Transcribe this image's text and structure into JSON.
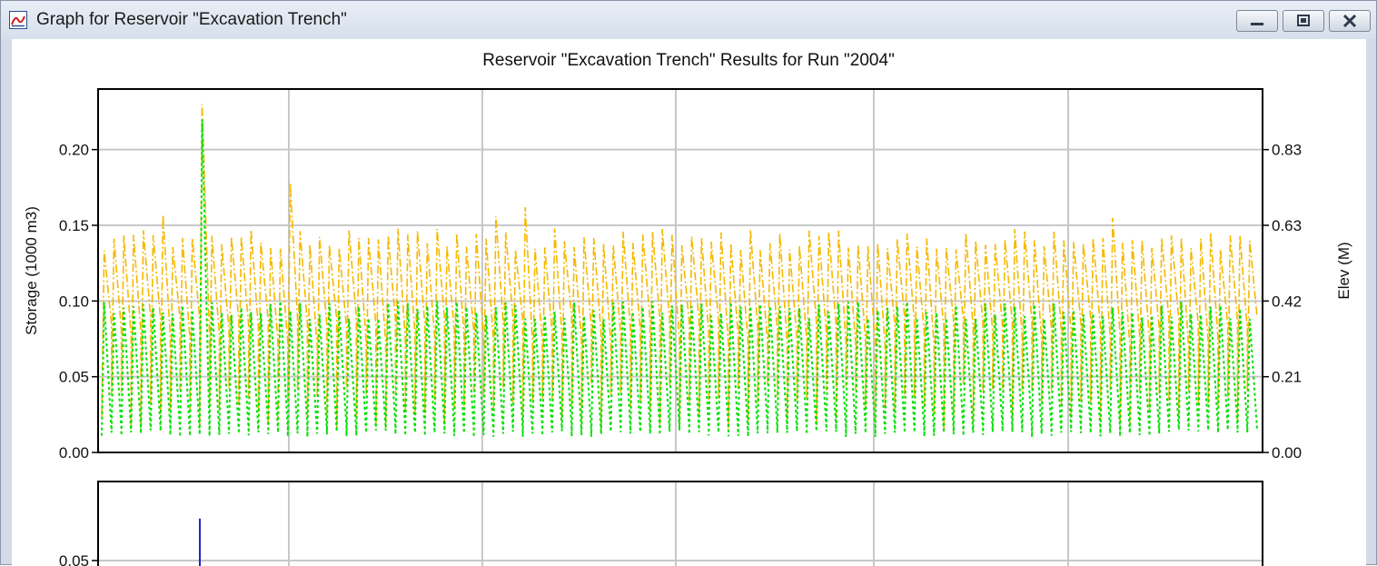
{
  "window": {
    "title": "Graph for Reservoir \"Excavation Trench\"",
    "app_icon": "graph-icon",
    "controls": [
      "minimize-icon",
      "restore-icon",
      "close-icon"
    ]
  },
  "chart_data": [
    {
      "type": "line",
      "title": "Reservoir \"Excavation Trench\" Results for Run \"2004\"",
      "ylabel": "Storage (1000 m3)",
      "y2label": "Elev (M)",
      "ylim": [
        0,
        0.24
      ],
      "yticks": [
        "0.00",
        "0.05",
        "0.10",
        "0.15",
        "0.20"
      ],
      "y2ticks": [
        "0.00",
        "0.21",
        "0.42",
        "0.63",
        "0.83"
      ],
      "grid": true,
      "series": [
        {
          "color": "#f5b800",
          "style": "dash-dot",
          "typical_peak": 0.145,
          "peaks": [
            0.157,
            0.23,
            0.178,
            0.156,
            0.162,
            0.155
          ],
          "low": 0.0
        },
        {
          "color": "#00e000",
          "style": "dotted",
          "typical_peak": 0.1,
          "peaks": [
            0.22
          ],
          "low": 0.01
        }
      ]
    },
    {
      "type": "line",
      "title": "",
      "ylabel": "",
      "yticks": [
        "0.05"
      ],
      "grid": true,
      "series": [
        {
          "color": "#2222cc",
          "style": "solid",
          "peaks": [
            0.085
          ]
        }
      ]
    }
  ]
}
